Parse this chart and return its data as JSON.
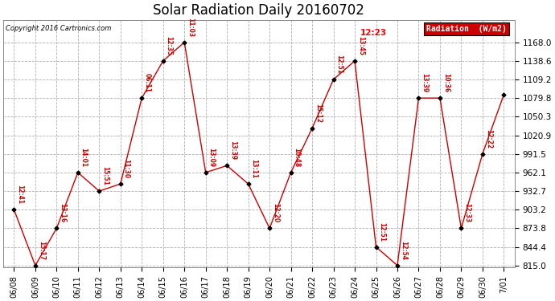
{
  "title": "Solar Radiation Daily 20160702",
  "copyright": "Copyright 2016 Cartronics.com",
  "legend_label": "Radiation  (W/m2)",
  "dates": [
    "06/08",
    "06/09",
    "06/10",
    "06/11",
    "06/12",
    "06/13",
    "06/14",
    "06/15",
    "06/16",
    "06/17",
    "06/18",
    "06/19",
    "06/20",
    "06/21",
    "06/22",
    "06/23",
    "06/24",
    "06/25",
    "06/26",
    "06/27",
    "06/28",
    "06/29",
    "06/30",
    "7/01"
  ],
  "y_data": [
    903.2,
    815.0,
    873.8,
    962.1,
    932.7,
    944.0,
    1079.8,
    1138.6,
    1168.0,
    962.1,
    973.0,
    944.0,
    873.8,
    962.1,
    1032.0,
    1109.2,
    1138.6,
    844.4,
    815.0,
    1079.8,
    1079.8,
    873.8,
    991.5,
    1085.0
  ],
  "times": [
    "12:41",
    "15:17",
    "13:16",
    "14:01",
    "15:51",
    "11:30",
    "06:11",
    "12:35",
    "11:03",
    "13:09",
    "13:39",
    "13:11",
    "12:20",
    "10:48",
    "15:12",
    "12:51",
    "13:45",
    "12:51",
    "12:54",
    "13:39",
    "10:36",
    "12:33",
    "12:22",
    ""
  ],
  "yticks": [
    815.0,
    844.4,
    873.8,
    903.2,
    932.7,
    962.1,
    991.5,
    1020.9,
    1050.3,
    1079.8,
    1109.2,
    1138.6,
    1168.0
  ],
  "ylim_min": 815.0,
  "ylim_max": 1168.0,
  "highlight_time": "12:23",
  "highlight_idx": 18,
  "line_color": "#cc0000",
  "marker_color": "#000000",
  "background_color": "#ffffff",
  "grid_color": "#b0b0b0",
  "title_fontsize": 12,
  "legend_bg": "#cc0000",
  "legend_text_color": "#ffffff"
}
